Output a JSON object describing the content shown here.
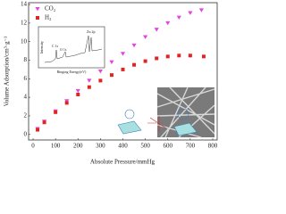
{
  "chart_data": {
    "type": "scatter",
    "xlabel": "Absolute Pressure/mmHg",
    "ylabel": "Volume Adsorption/cm³·g⁻¹",
    "xlim": [
      -20,
      820
    ],
    "ylim": [
      -0.6,
      14.2
    ],
    "xticks": [
      0,
      100,
      200,
      300,
      400,
      500,
      600,
      700,
      800
    ],
    "yticks": [
      0,
      2,
      4,
      6,
      8,
      10,
      12,
      14
    ],
    "legend": "upper left",
    "series": [
      {
        "name": "CO₂",
        "color": "#e046e0",
        "marker": "triangle-down",
        "x": [
          20,
          50,
          100,
          150,
          200,
          250,
          300,
          350,
          400,
          450,
          500,
          550,
          600,
          650,
          700,
          750
        ],
        "values": [
          0.6,
          1.4,
          2.5,
          3.6,
          4.7,
          5.8,
          6.8,
          7.8,
          8.7,
          9.6,
          10.5,
          11.3,
          12.0,
          12.6,
          13.1,
          13.4
        ]
      },
      {
        "name": "H₂",
        "color": "#e02424",
        "marker": "square",
        "x": [
          20,
          50,
          100,
          150,
          200,
          250,
          300,
          350,
          400,
          450,
          500,
          550,
          600,
          650,
          700,
          760
        ],
        "values": [
          0.5,
          1.3,
          2.4,
          3.4,
          4.3,
          5.1,
          5.8,
          6.4,
          7.0,
          7.5,
          7.9,
          8.2,
          8.4,
          8.5,
          8.5,
          8.4
        ]
      }
    ],
    "inset": {
      "ylabel": "Intensity",
      "xlabel": "Binging Energy(eV)",
      "peaks": [
        "C 1s",
        "O 1s",
        "Zn 2p"
      ]
    }
  }
}
